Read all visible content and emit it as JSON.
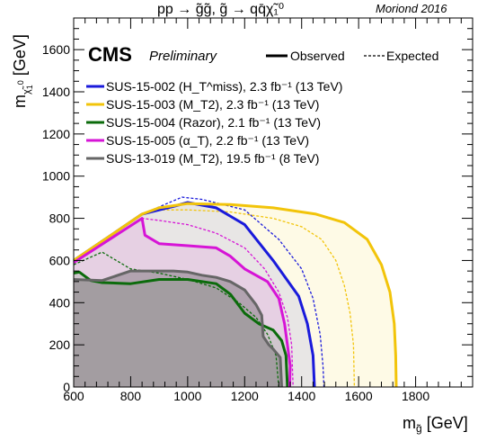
{
  "header": {
    "process": "pp → g̃g̃,  g̃ → qq̄χ̃₁⁰",
    "conference": "Moriond 2016"
  },
  "labels": {
    "cms": "CMS",
    "preliminary": "Preliminary",
    "observed": "Observed",
    "expected": "Expected"
  },
  "chart_data": {
    "type": "line",
    "xlabel": "m_g̃ [GeV]",
    "ylabel": "m_χ̃₁⁰ [GeV]",
    "xlim": [
      600,
      2000
    ],
    "ylim": [
      0,
      1750
    ],
    "xticks": [
      600,
      800,
      1000,
      1200,
      1400,
      1600,
      1800
    ],
    "yticks": [
      0,
      200,
      400,
      600,
      800,
      1000,
      1200,
      1400,
      1600
    ],
    "grid": false,
    "legend_position": "top-left",
    "series": [
      {
        "name": "SUS-15-002 (H_T^miss), 2.3 fb⁻¹ (13 TeV)",
        "color": "#1a1adb",
        "observed": [
          [
            600,
            600
          ],
          [
            840,
            820
          ],
          [
            960,
            860
          ],
          [
            1000,
            875
          ],
          [
            1100,
            850
          ],
          [
            1200,
            770
          ],
          [
            1300,
            600
          ],
          [
            1390,
            430
          ],
          [
            1420,
            300
          ],
          [
            1440,
            150
          ],
          [
            1445,
            0
          ]
        ],
        "expected": [
          [
            600,
            600
          ],
          [
            840,
            820
          ],
          [
            980,
            900
          ],
          [
            1050,
            890
          ],
          [
            1200,
            840
          ],
          [
            1320,
            700
          ],
          [
            1400,
            560
          ],
          [
            1440,
            420
          ],
          [
            1465,
            250
          ],
          [
            1475,
            100
          ],
          [
            1478,
            0
          ]
        ]
      },
      {
        "name": "SUS-15-003 (M_T2), 2.3 fb⁻¹ (13 TeV)",
        "color": "#f2c40a",
        "observed": [
          [
            600,
            600
          ],
          [
            840,
            820
          ],
          [
            900,
            850
          ],
          [
            1000,
            870
          ],
          [
            1150,
            865
          ],
          [
            1300,
            850
          ],
          [
            1450,
            820
          ],
          [
            1550,
            780
          ],
          [
            1630,
            700
          ],
          [
            1680,
            580
          ],
          [
            1710,
            450
          ],
          [
            1725,
            300
          ],
          [
            1730,
            150
          ],
          [
            1732,
            0
          ]
        ],
        "expected": [
          [
            600,
            600
          ],
          [
            840,
            820
          ],
          [
            900,
            840
          ],
          [
            1000,
            840
          ],
          [
            1150,
            830
          ],
          [
            1300,
            800
          ],
          [
            1400,
            760
          ],
          [
            1470,
            700
          ],
          [
            1520,
            600
          ],
          [
            1550,
            480
          ],
          [
            1570,
            350
          ],
          [
            1582,
            200
          ],
          [
            1585,
            0
          ]
        ]
      },
      {
        "name": "SUS-15-004 (Razor), 2.1 fb⁻¹ (13 TeV)",
        "color": "#0b6b0b",
        "observed": [
          [
            600,
            540
          ],
          [
            620,
            545
          ],
          [
            660,
            505
          ],
          [
            700,
            495
          ],
          [
            800,
            490
          ],
          [
            900,
            510
          ],
          [
            1000,
            510
          ],
          [
            1100,
            490
          ],
          [
            1150,
            440
          ],
          [
            1200,
            350
          ],
          [
            1250,
            300
          ],
          [
            1300,
            270
          ],
          [
            1330,
            220
          ],
          [
            1345,
            150
          ],
          [
            1350,
            0
          ]
        ],
        "expected": [
          [
            600,
            580
          ],
          [
            700,
            640
          ],
          [
            800,
            560
          ],
          [
            900,
            540
          ],
          [
            1000,
            510
          ],
          [
            1100,
            470
          ],
          [
            1180,
            400
          ],
          [
            1240,
            330
          ],
          [
            1280,
            250
          ],
          [
            1310,
            150
          ],
          [
            1320,
            0
          ]
        ]
      },
      {
        "name": "SUS-15-005 (α_T), 2.2 fb⁻¹ (13 TeV)",
        "color": "#d614d6",
        "observed": [
          [
            600,
            590
          ],
          [
            840,
            800
          ],
          [
            850,
            720
          ],
          [
            900,
            680
          ],
          [
            1000,
            670
          ],
          [
            1100,
            660
          ],
          [
            1150,
            620
          ],
          [
            1200,
            560
          ],
          [
            1280,
            500
          ],
          [
            1320,
            420
          ],
          [
            1340,
            300
          ],
          [
            1350,
            200
          ],
          [
            1360,
            100
          ],
          [
            1358,
            0
          ]
        ],
        "expected": [
          [
            600,
            590
          ],
          [
            840,
            800
          ],
          [
            900,
            790
          ],
          [
            1000,
            770
          ],
          [
            1100,
            730
          ],
          [
            1200,
            660
          ],
          [
            1270,
            560
          ],
          [
            1320,
            450
          ],
          [
            1350,
            330
          ],
          [
            1365,
            200
          ],
          [
            1370,
            0
          ]
        ]
      },
      {
        "name": "SUS-13-019 (M_T2), 19.5 fb⁻¹ (8 TeV)",
        "color": "#666666",
        "observed": [
          [
            600,
            510
          ],
          [
            700,
            505
          ],
          [
            800,
            550
          ],
          [
            900,
            550
          ],
          [
            950,
            550
          ],
          [
            1000,
            545
          ],
          [
            1050,
            530
          ],
          [
            1100,
            520
          ],
          [
            1150,
            500
          ],
          [
            1200,
            460
          ],
          [
            1240,
            390
          ],
          [
            1260,
            340
          ],
          [
            1265,
            240
          ],
          [
            1285,
            200
          ],
          [
            1300,
            180
          ],
          [
            1325,
            140
          ],
          [
            1330,
            0
          ]
        ],
        "expected": []
      }
    ]
  }
}
